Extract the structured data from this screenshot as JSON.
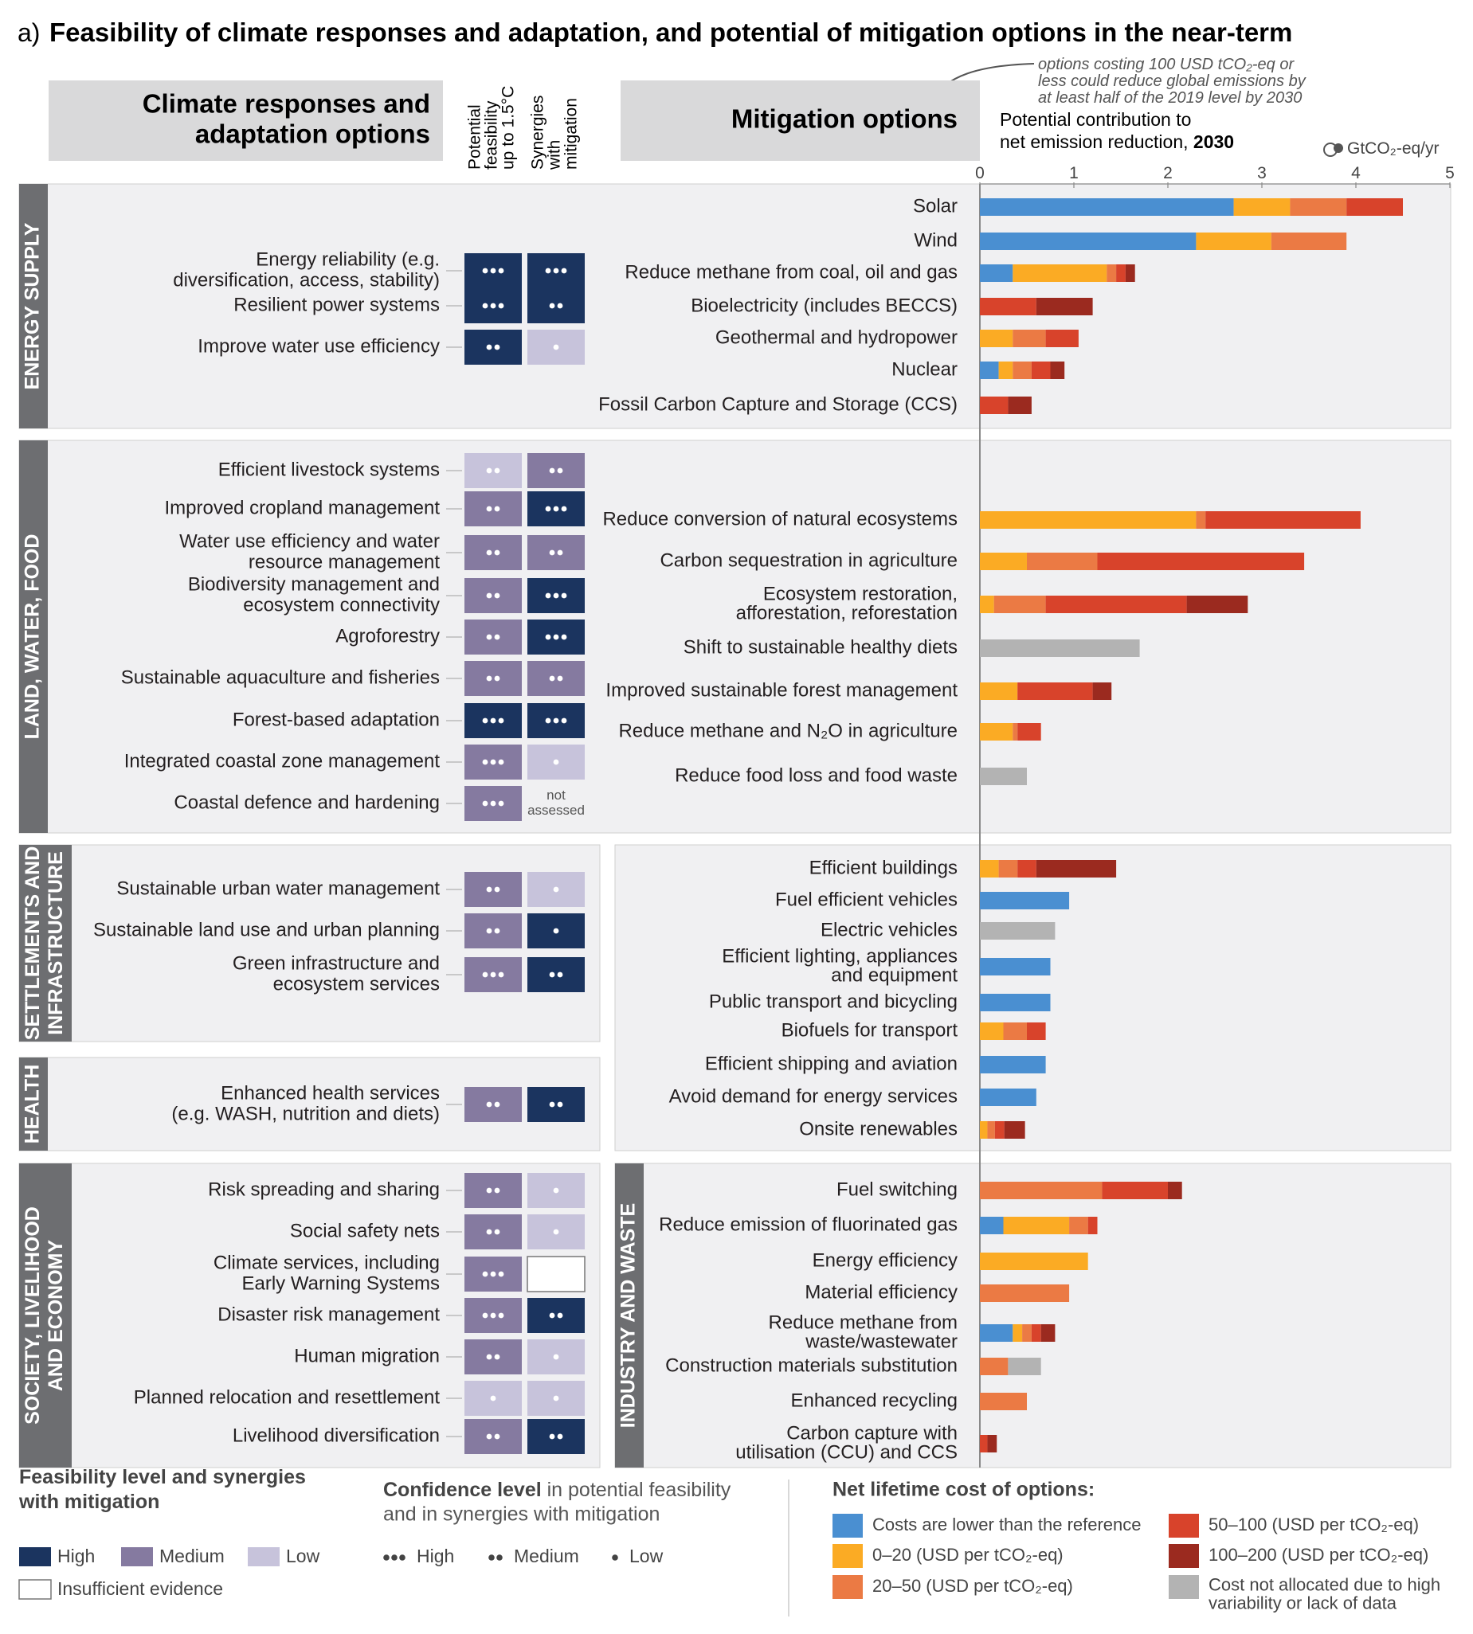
{
  "figure": {
    "panel_letter": "a)",
    "title": "Feasibility of climate responses and adaptation, and potential of mitigation options in the near-term",
    "callout": [
      "options costing 100 USD tCO₂-eq or",
      "less could reduce global emissions by",
      "at least half of the 2019 level by 2030"
    ]
  },
  "headers": {
    "adaptation_title": [
      "Climate responses and",
      "adaptation options"
    ],
    "col1": [
      "Potential",
      "feasibility",
      "up to 1.5°C"
    ],
    "col2": [
      "Synergies",
      "with",
      "mitigation"
    ],
    "mitigation_title": "Mitigation options",
    "axis_title": [
      "Potential contribution to",
      "net emission reduction, "
    ],
    "axis_year": "2030",
    "axis_unit": "GtCO₂-eq/yr",
    "not_assessed": [
      "not",
      "assessed"
    ]
  },
  "sectors": {
    "energy": [
      "ENERGY SUPPLY"
    ],
    "land": [
      "LAND, WATER, FOOD"
    ],
    "settlements": [
      "SETTLEMENTS AND",
      "INFRASTRUCTURE"
    ],
    "health": [
      "HEALTH"
    ],
    "society": [
      "SOCIETY, LIVELIHOOD",
      "AND ECONOMY"
    ],
    "industry": [
      "INDUSTRY AND WASTE"
    ]
  },
  "adaptation_options": [
    {
      "label": [
        "Energy reliability (e.g.",
        "diversification, access, stability)"
      ],
      "feasibility": "High",
      "feasibility_confidence": "High",
      "synergies": "High",
      "synergies_confidence": "High"
    },
    {
      "label": [
        "Resilient power systems"
      ],
      "feasibility": "High",
      "feasibility_confidence": "High",
      "synergies": "High",
      "synergies_confidence": "Medium"
    },
    {
      "label": [
        "Improve water use efficiency"
      ],
      "feasibility": "High",
      "feasibility_confidence": "Medium",
      "synergies": "Low",
      "synergies_confidence": "Low"
    },
    {
      "label": [
        "Efficient livestock systems"
      ],
      "feasibility": "Low",
      "feasibility_confidence": "Medium",
      "synergies": "Medium",
      "synergies_confidence": "Medium"
    },
    {
      "label": [
        "Improved cropland management"
      ],
      "feasibility": "Medium",
      "feasibility_confidence": "Medium",
      "synergies": "High",
      "synergies_confidence": "High"
    },
    {
      "label": [
        "Water use efficiency and water",
        "resource management"
      ],
      "feasibility": "Medium",
      "feasibility_confidence": "Medium",
      "synergies": "Medium",
      "synergies_confidence": "Medium"
    },
    {
      "label": [
        "Biodiversity management and",
        "ecosystem connectivity"
      ],
      "feasibility": "Medium",
      "feasibility_confidence": "Medium",
      "synergies": "High",
      "synergies_confidence": "High"
    },
    {
      "label": [
        "Agroforestry"
      ],
      "feasibility": "Medium",
      "feasibility_confidence": "Medium",
      "synergies": "High",
      "synergies_confidence": "High"
    },
    {
      "label": [
        "Sustainable aquaculture and fisheries"
      ],
      "feasibility": "Medium",
      "feasibility_confidence": "Medium",
      "synergies": "Medium",
      "synergies_confidence": "Medium"
    },
    {
      "label": [
        "Forest-based adaptation"
      ],
      "feasibility": "High",
      "feasibility_confidence": "High",
      "synergies": "High",
      "synergies_confidence": "High"
    },
    {
      "label": [
        "Integrated coastal zone management"
      ],
      "feasibility": "Medium",
      "feasibility_confidence": "High",
      "synergies": "Low",
      "synergies_confidence": "Low"
    },
    {
      "label": [
        "Coastal defence and hardening"
      ],
      "feasibility": "Medium",
      "feasibility_confidence": "High",
      "synergies": "not assessed",
      "synergies_confidence": null
    },
    {
      "label": [
        "Sustainable urban water management"
      ],
      "feasibility": "Medium",
      "feasibility_confidence": "Medium",
      "synergies": "Low",
      "synergies_confidence": "Low"
    },
    {
      "label": [
        "Sustainable land use and urban planning"
      ],
      "feasibility": "Medium",
      "feasibility_confidence": "Medium",
      "synergies": "High",
      "synergies_confidence": "Low"
    },
    {
      "label": [
        "Green infrastructure and",
        "ecosystem services"
      ],
      "feasibility": "Medium",
      "feasibility_confidence": "High",
      "synergies": "High",
      "synergies_confidence": "Medium"
    },
    {
      "label": [
        "Enhanced health services",
        "(e.g. WASH, nutrition and diets)"
      ],
      "feasibility": "Medium",
      "feasibility_confidence": "Medium",
      "synergies": "High",
      "synergies_confidence": "Medium"
    },
    {
      "label": [
        "Risk spreading and sharing"
      ],
      "feasibility": "Medium",
      "feasibility_confidence": "Medium",
      "synergies": "Low",
      "synergies_confidence": "Low"
    },
    {
      "label": [
        "Social safety nets"
      ],
      "feasibility": "Medium",
      "feasibility_confidence": "Medium",
      "synergies": "Low",
      "synergies_confidence": "Low"
    },
    {
      "label": [
        "Climate services, including",
        "Early Warning Systems"
      ],
      "feasibility": "Medium",
      "feasibility_confidence": "High",
      "synergies": "Insufficient evidence",
      "synergies_confidence": null
    },
    {
      "label": [
        "Disaster risk management"
      ],
      "feasibility": "Medium",
      "feasibility_confidence": "High",
      "synergies": "High",
      "synergies_confidence": "Medium"
    },
    {
      "label": [
        "Human migration"
      ],
      "feasibility": "Medium",
      "feasibility_confidence": "Medium",
      "synergies": "Low",
      "synergies_confidence": "Low"
    },
    {
      "label": [
        "Planned relocation and resettlement"
      ],
      "feasibility": "Low",
      "feasibility_confidence": "Low",
      "synergies": "Low",
      "synergies_confidence": "Low"
    },
    {
      "label": [
        "Livelihood diversification"
      ],
      "feasibility": "Medium",
      "feasibility_confidence": "Medium",
      "synergies": "High",
      "synergies_confidence": "Medium"
    }
  ],
  "chart_data": {
    "type": "bar",
    "orientation": "horizontal",
    "stacked": true,
    "x_axis_label": "Potential contribution to net emission reduction, 2030",
    "unit": "GtCO₂-eq/yr",
    "xlim": [
      0,
      5
    ],
    "ticks": [
      0,
      1,
      2,
      3,
      4,
      5
    ],
    "grid": false,
    "cost_categories": [
      {
        "key": "lower",
        "label": "Costs are lower than the reference",
        "color": "#4a8fd1"
      },
      {
        "key": "c0_20",
        "label": "0–20 (USD per tCO₂-eq)",
        "color": "#fbab24"
      },
      {
        "key": "c20_50",
        "label": "20–50 (USD per tCO₂-eq)",
        "color": "#eb7a44"
      },
      {
        "key": "c50_100",
        "label": "50–100 (USD per tCO₂-eq)",
        "color": "#d8432b"
      },
      {
        "key": "c100_200",
        "label": "100–200 (USD per tCO₂-eq)",
        "color": "#9b2a1f"
      },
      {
        "key": "na",
        "label": "Cost not allocated due to high variability or lack of data",
        "color": "#b3b3b3"
      }
    ],
    "series_order": [
      "lower",
      "c0_20",
      "c20_50",
      "c50_100",
      "c100_200",
      "na"
    ],
    "options": [
      {
        "label": [
          "Solar"
        ],
        "values": {
          "lower": 2.7,
          "c0_20": 0.6,
          "c20_50": 0.6,
          "c50_100": 0.6
        }
      },
      {
        "label": [
          "Wind"
        ],
        "values": {
          "lower": 2.3,
          "c0_20": 0.8,
          "c20_50": 0.8
        }
      },
      {
        "label": [
          "Reduce methane from coal, oil and gas"
        ],
        "values": {
          "lower": 0.35,
          "c0_20": 1.0,
          "c20_50": 0.1,
          "c50_100": 0.1,
          "c100_200": 0.1
        }
      },
      {
        "label": [
          "Bioelectricity (includes BECCS)"
        ],
        "values": {
          "c50_100": 0.6,
          "c100_200": 0.6
        }
      },
      {
        "label": [
          "Geothermal and hydropower"
        ],
        "values": {
          "c0_20": 0.35,
          "c20_50": 0.35,
          "c50_100": 0.35
        }
      },
      {
        "label": [
          "Nuclear"
        ],
        "values": {
          "lower": 0.2,
          "c0_20": 0.15,
          "c20_50": 0.2,
          "c50_100": 0.2,
          "c100_200": 0.15
        }
      },
      {
        "label": [
          "Fossil Carbon Capture and Storage (CCS)"
        ],
        "values": {
          "c50_100": 0.3,
          "c100_200": 0.25
        }
      },
      {
        "label": [
          "Reduce conversion of natural ecosystems"
        ],
        "values": {
          "c0_20": 2.3,
          "c20_50": 0.1,
          "c50_100": 1.65
        }
      },
      {
        "label": [
          "Carbon sequestration in agriculture"
        ],
        "values": {
          "c0_20": 0.5,
          "c20_50": 0.75,
          "c50_100": 2.2
        }
      },
      {
        "label": [
          "Ecosystem restoration,",
          "afforestation, reforestation"
        ],
        "values": {
          "c0_20": 0.15,
          "c20_50": 0.55,
          "c50_100": 1.5,
          "c100_200": 0.65
        }
      },
      {
        "label": [
          "Shift to sustainable healthy diets"
        ],
        "values": {
          "na": 1.7
        }
      },
      {
        "label": [
          "Improved sustainable forest management"
        ],
        "values": {
          "c0_20": 0.4,
          "c50_100": 0.8,
          "c100_200": 0.2
        }
      },
      {
        "label": [
          "Reduce methane and N₂O in agriculture"
        ],
        "values": {
          "c0_20": 0.35,
          "c20_50": 0.05,
          "c50_100": 0.25
        }
      },
      {
        "label": [
          "Reduce food loss and food waste"
        ],
        "values": {
          "na": 0.5
        }
      },
      {
        "label": [
          "Efficient buildings"
        ],
        "values": {
          "c0_20": 0.2,
          "c20_50": 0.2,
          "c50_100": 0.2,
          "c100_200": 0.85
        }
      },
      {
        "label": [
          "Fuel efficient vehicles"
        ],
        "values": {
          "lower": 0.95
        }
      },
      {
        "label": [
          "Electric vehicles"
        ],
        "values": {
          "na": 0.8
        }
      },
      {
        "label": [
          "Efficient lighting, appliances",
          "and equipment"
        ],
        "values": {
          "lower": 0.75
        }
      },
      {
        "label": [
          "Public transport and bicycling"
        ],
        "values": {
          "lower": 0.75
        }
      },
      {
        "label": [
          "Biofuels for transport"
        ],
        "values": {
          "c0_20": 0.25,
          "c20_50": 0.25,
          "c50_100": 0.2
        }
      },
      {
        "label": [
          "Efficient shipping and aviation"
        ],
        "values": {
          "lower": 0.7
        }
      },
      {
        "label": [
          "Avoid demand for energy services"
        ],
        "values": {
          "lower": 0.6
        }
      },
      {
        "label": [
          "Onsite renewables"
        ],
        "values": {
          "c0_20": 0.08,
          "c20_50": 0.08,
          "c50_100": 0.1,
          "c100_200": 0.22
        }
      },
      {
        "label": [
          "Fuel switching"
        ],
        "values": {
          "c20_50": 1.3,
          "c50_100": 0.7,
          "c100_200": 0.15
        }
      },
      {
        "label": [
          "Reduce emission of fluorinated gas"
        ],
        "values": {
          "lower": 0.25,
          "c0_20": 0.7,
          "c20_50": 0.2,
          "c50_100": 0.1
        }
      },
      {
        "label": [
          "Energy efficiency"
        ],
        "values": {
          "c0_20": 1.15
        }
      },
      {
        "label": [
          "Material efficiency"
        ],
        "values": {
          "c20_50": 0.95
        }
      },
      {
        "label": [
          "Reduce methane from",
          "waste/wastewater"
        ],
        "values": {
          "lower": 0.35,
          "c0_20": 0.1,
          "c20_50": 0.1,
          "c50_100": 0.1,
          "c100_200": 0.15
        }
      },
      {
        "label": [
          "Construction materials substitution"
        ],
        "values": {
          "c20_50": 0.3,
          "na": 0.35
        }
      },
      {
        "label": [
          "Enhanced recycling"
        ],
        "values": {
          "c20_50": 0.5
        }
      },
      {
        "label": [
          "Carbon capture with",
          "utilisation (CCU) and CCS"
        ],
        "values": {
          "c50_100": 0.08,
          "c100_200": 0.1
        }
      }
    ]
  },
  "legend": {
    "feasibility_title": [
      "Feasibility level and synergies",
      "with mitigation"
    ],
    "high": "High",
    "medium": "Medium",
    "low": "Low",
    "insufficient": "Insufficient evidence",
    "confidence_title_bold": "Confidence level",
    "confidence_title_rest": " in potential feasibility",
    "confidence_title_line2": "and in synergies with mitigation",
    "conf_high": "High",
    "conf_medium": "Medium",
    "conf_low": "Low",
    "cost_title": "Net lifetime cost of options:",
    "cost_items": [
      [
        "Costs are lower than the reference"
      ],
      [
        "0–20 (USD per tCO₂-eq)"
      ],
      [
        "20–50 (USD per tCO₂-eq)"
      ],
      [
        "50–100 (USD per tCO₂-eq)"
      ],
      [
        "100–200 (USD per tCO₂-eq)"
      ],
      [
        "Cost not allocated due to high",
        "variability or lack of data"
      ]
    ]
  },
  "colors": {
    "level_high": "#1b345f",
    "level_medium": "#857aa0",
    "level_low": "#c7c3db",
    "panel_bg": "#f0f0f2",
    "header_bg": "#d9d9da",
    "sector_bar": "#6d6e71"
  }
}
